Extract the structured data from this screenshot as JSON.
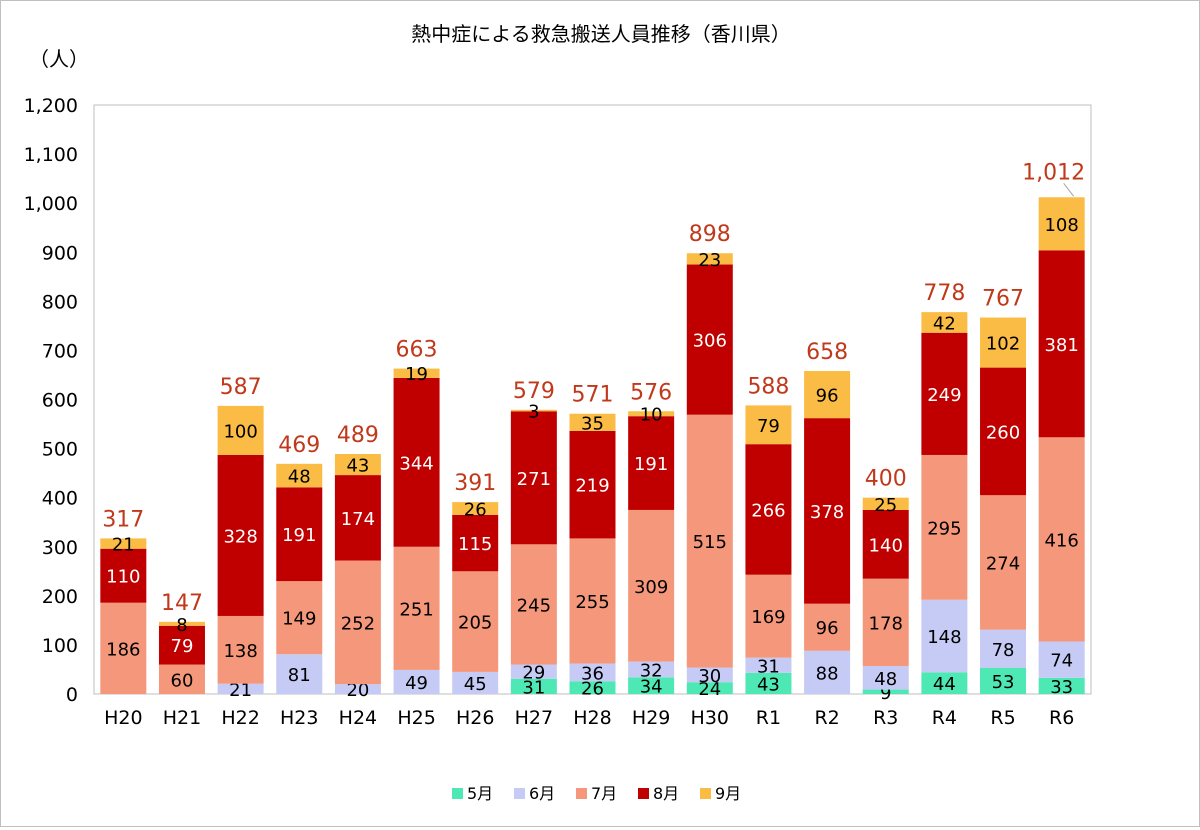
{
  "chart_data": {
    "type": "bar",
    "stacked": true,
    "title": "熱中症による救急搬送人員推移（香川県）",
    "ylabel": "（人）",
    "xlabel": "",
    "ylim": [
      0,
      1200
    ],
    "ytick_step": 100,
    "ytick_labels": [
      "0",
      "100",
      "200",
      "300",
      "400",
      "500",
      "600",
      "700",
      "800",
      "900",
      "1,000",
      "1,100",
      "1,200"
    ],
    "categories": [
      "H20",
      "H21",
      "H22",
      "H23",
      "H24",
      "H25",
      "H26",
      "H27",
      "H28",
      "H29",
      "H30",
      "R1",
      "R2",
      "R3",
      "R4",
      "R5",
      "R6"
    ],
    "series": [
      {
        "name": "5月",
        "color": "#4de8b4",
        "values": [
          0,
          0,
          0,
          0,
          0,
          0,
          0,
          31,
          26,
          34,
          24,
          43,
          0,
          9,
          44,
          53,
          33
        ]
      },
      {
        "name": "6月",
        "color": "#c5cbf5",
        "values": [
          0,
          0,
          21,
          81,
          20,
          49,
          45,
          29,
          36,
          32,
          30,
          31,
          88,
          48,
          148,
          78,
          74
        ]
      },
      {
        "name": "7月",
        "color": "#f5977a",
        "values": [
          186,
          60,
          138,
          149,
          252,
          251,
          205,
          245,
          255,
          309,
          515,
          169,
          96,
          178,
          295,
          274,
          416
        ]
      },
      {
        "name": "8月",
        "color": "#c00000",
        "values": [
          110,
          79,
          328,
          191,
          174,
          344,
          115,
          271,
          219,
          191,
          306,
          266,
          378,
          140,
          249,
          260,
          381
        ]
      },
      {
        "name": "9月",
        "color": "#fbbc46",
        "values": [
          21,
          8,
          100,
          48,
          43,
          19,
          26,
          3,
          35,
          10,
          23,
          79,
          96,
          25,
          42,
          102,
          108
        ]
      }
    ],
    "totals": [
      "317",
      "147",
      "587",
      "469",
      "489",
      "663",
      "391",
      "579",
      "571",
      "576",
      "898",
      "588",
      "658",
      "400",
      "778",
      "767",
      "1,012"
    ],
    "total_label_color": "#c0391b",
    "legend_position": "bottom-center",
    "grid": false
  }
}
